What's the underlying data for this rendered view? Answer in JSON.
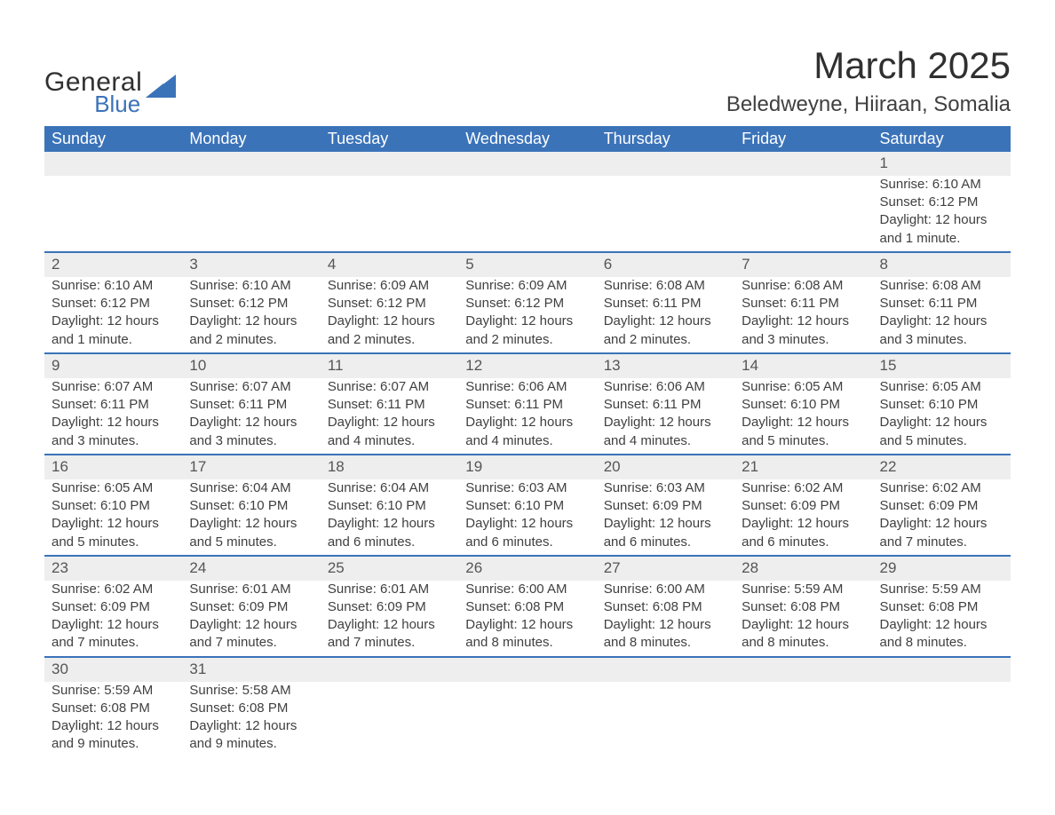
{
  "logo": {
    "general": "General",
    "blue": "Blue",
    "triangle_color": "#3b73b9"
  },
  "title": "March 2025",
  "location": "Beledweyne, Hiiraan, Somalia",
  "colors": {
    "header_bg": "#3b73b9",
    "header_text": "#ffffff",
    "daynum_bg": "#eeeeee",
    "row_divider": "#3b73b9",
    "body_text": "#404040",
    "page_bg": "#ffffff"
  },
  "fonts": {
    "title_size_pt": 32,
    "location_size_pt": 18,
    "header_size_pt": 14,
    "body_size_pt": 11
  },
  "day_labels": [
    "Sunday",
    "Monday",
    "Tuesday",
    "Wednesday",
    "Thursday",
    "Friday",
    "Saturday"
  ],
  "weeks": [
    [
      null,
      null,
      null,
      null,
      null,
      null,
      {
        "n": "1",
        "sr": "Sunrise: 6:10 AM",
        "ss": "Sunset: 6:12 PM",
        "dl": "Daylight: 12 hours and 1 minute."
      }
    ],
    [
      {
        "n": "2",
        "sr": "Sunrise: 6:10 AM",
        "ss": "Sunset: 6:12 PM",
        "dl": "Daylight: 12 hours and 1 minute."
      },
      {
        "n": "3",
        "sr": "Sunrise: 6:10 AM",
        "ss": "Sunset: 6:12 PM",
        "dl": "Daylight: 12 hours and 2 minutes."
      },
      {
        "n": "4",
        "sr": "Sunrise: 6:09 AM",
        "ss": "Sunset: 6:12 PM",
        "dl": "Daylight: 12 hours and 2 minutes."
      },
      {
        "n": "5",
        "sr": "Sunrise: 6:09 AM",
        "ss": "Sunset: 6:12 PM",
        "dl": "Daylight: 12 hours and 2 minutes."
      },
      {
        "n": "6",
        "sr": "Sunrise: 6:08 AM",
        "ss": "Sunset: 6:11 PM",
        "dl": "Daylight: 12 hours and 2 minutes."
      },
      {
        "n": "7",
        "sr": "Sunrise: 6:08 AM",
        "ss": "Sunset: 6:11 PM",
        "dl": "Daylight: 12 hours and 3 minutes."
      },
      {
        "n": "8",
        "sr": "Sunrise: 6:08 AM",
        "ss": "Sunset: 6:11 PM",
        "dl": "Daylight: 12 hours and 3 minutes."
      }
    ],
    [
      {
        "n": "9",
        "sr": "Sunrise: 6:07 AM",
        "ss": "Sunset: 6:11 PM",
        "dl": "Daylight: 12 hours and 3 minutes."
      },
      {
        "n": "10",
        "sr": "Sunrise: 6:07 AM",
        "ss": "Sunset: 6:11 PM",
        "dl": "Daylight: 12 hours and 3 minutes."
      },
      {
        "n": "11",
        "sr": "Sunrise: 6:07 AM",
        "ss": "Sunset: 6:11 PM",
        "dl": "Daylight: 12 hours and 4 minutes."
      },
      {
        "n": "12",
        "sr": "Sunrise: 6:06 AM",
        "ss": "Sunset: 6:11 PM",
        "dl": "Daylight: 12 hours and 4 minutes."
      },
      {
        "n": "13",
        "sr": "Sunrise: 6:06 AM",
        "ss": "Sunset: 6:11 PM",
        "dl": "Daylight: 12 hours and 4 minutes."
      },
      {
        "n": "14",
        "sr": "Sunrise: 6:05 AM",
        "ss": "Sunset: 6:10 PM",
        "dl": "Daylight: 12 hours and 5 minutes."
      },
      {
        "n": "15",
        "sr": "Sunrise: 6:05 AM",
        "ss": "Sunset: 6:10 PM",
        "dl": "Daylight: 12 hours and 5 minutes."
      }
    ],
    [
      {
        "n": "16",
        "sr": "Sunrise: 6:05 AM",
        "ss": "Sunset: 6:10 PM",
        "dl": "Daylight: 12 hours and 5 minutes."
      },
      {
        "n": "17",
        "sr": "Sunrise: 6:04 AM",
        "ss": "Sunset: 6:10 PM",
        "dl": "Daylight: 12 hours and 5 minutes."
      },
      {
        "n": "18",
        "sr": "Sunrise: 6:04 AM",
        "ss": "Sunset: 6:10 PM",
        "dl": "Daylight: 12 hours and 6 minutes."
      },
      {
        "n": "19",
        "sr": "Sunrise: 6:03 AM",
        "ss": "Sunset: 6:10 PM",
        "dl": "Daylight: 12 hours and 6 minutes."
      },
      {
        "n": "20",
        "sr": "Sunrise: 6:03 AM",
        "ss": "Sunset: 6:09 PM",
        "dl": "Daylight: 12 hours and 6 minutes."
      },
      {
        "n": "21",
        "sr": "Sunrise: 6:02 AM",
        "ss": "Sunset: 6:09 PM",
        "dl": "Daylight: 12 hours and 6 minutes."
      },
      {
        "n": "22",
        "sr": "Sunrise: 6:02 AM",
        "ss": "Sunset: 6:09 PM",
        "dl": "Daylight: 12 hours and 7 minutes."
      }
    ],
    [
      {
        "n": "23",
        "sr": "Sunrise: 6:02 AM",
        "ss": "Sunset: 6:09 PM",
        "dl": "Daylight: 12 hours and 7 minutes."
      },
      {
        "n": "24",
        "sr": "Sunrise: 6:01 AM",
        "ss": "Sunset: 6:09 PM",
        "dl": "Daylight: 12 hours and 7 minutes."
      },
      {
        "n": "25",
        "sr": "Sunrise: 6:01 AM",
        "ss": "Sunset: 6:09 PM",
        "dl": "Daylight: 12 hours and 7 minutes."
      },
      {
        "n": "26",
        "sr": "Sunrise: 6:00 AM",
        "ss": "Sunset: 6:08 PM",
        "dl": "Daylight: 12 hours and 8 minutes."
      },
      {
        "n": "27",
        "sr": "Sunrise: 6:00 AM",
        "ss": "Sunset: 6:08 PM",
        "dl": "Daylight: 12 hours and 8 minutes."
      },
      {
        "n": "28",
        "sr": "Sunrise: 5:59 AM",
        "ss": "Sunset: 6:08 PM",
        "dl": "Daylight: 12 hours and 8 minutes."
      },
      {
        "n": "29",
        "sr": "Sunrise: 5:59 AM",
        "ss": "Sunset: 6:08 PM",
        "dl": "Daylight: 12 hours and 8 minutes."
      }
    ],
    [
      {
        "n": "30",
        "sr": "Sunrise: 5:59 AM",
        "ss": "Sunset: 6:08 PM",
        "dl": "Daylight: 12 hours and 9 minutes."
      },
      {
        "n": "31",
        "sr": "Sunrise: 5:58 AM",
        "ss": "Sunset: 6:08 PM",
        "dl": "Daylight: 12 hours and 9 minutes."
      },
      null,
      null,
      null,
      null,
      null
    ]
  ]
}
